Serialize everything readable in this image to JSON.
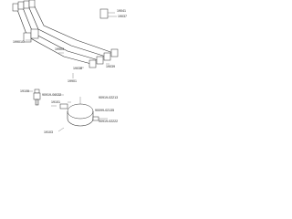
{
  "labels": [
    "19041",
    "19037",
    "19901C",
    "19903",
    "19038",
    "19039",
    "19901",
    "19100",
    "90919-06022",
    "90919-02213",
    "19101",
    "90099-02135",
    "90919-02222",
    "19103"
  ]
}
